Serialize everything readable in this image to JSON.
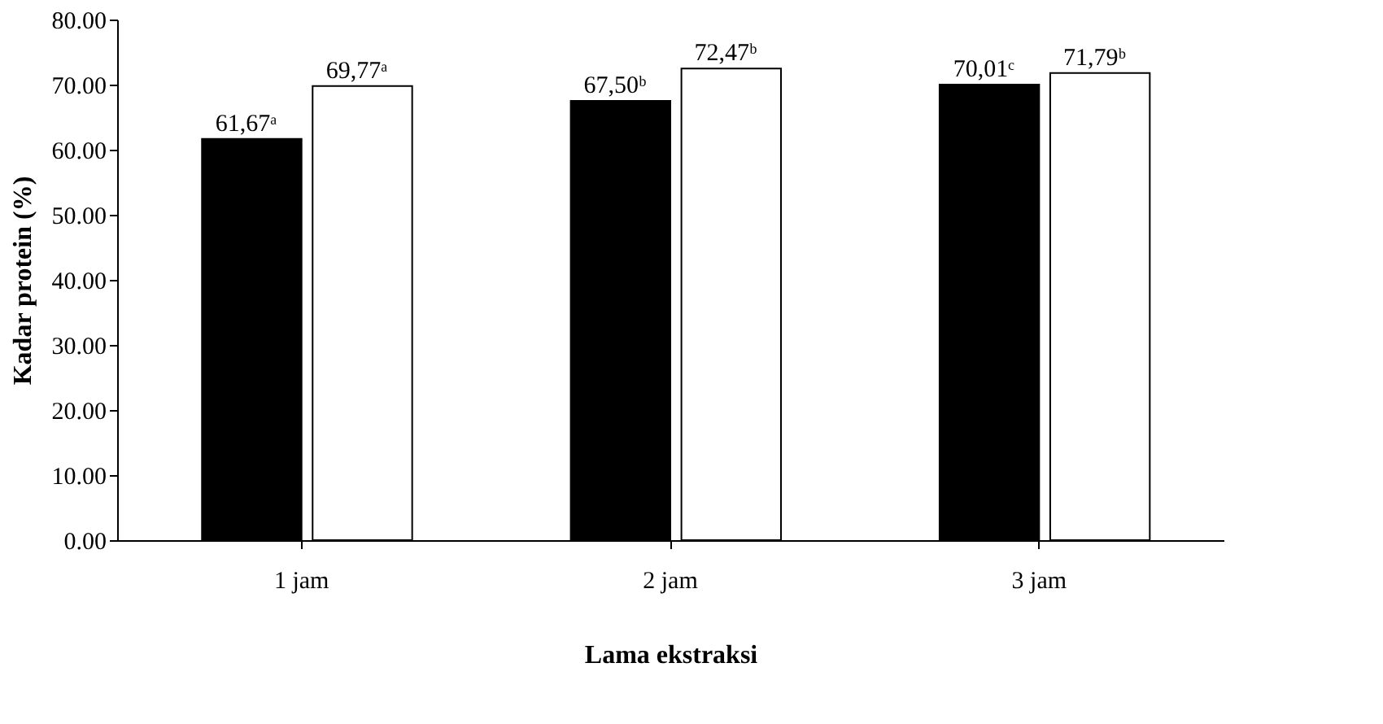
{
  "chart_data": {
    "type": "bar",
    "xlabel": "Lama ekstraksi",
    "ylabel": "Kadar protein (%)",
    "categories": [
      "1 jam",
      "2 jam",
      "3 jam"
    ],
    "series": [
      {
        "color": "#000000",
        "values": [
          61.67,
          67.5,
          70.01
        ],
        "value_labels": [
          "61,67ᵃ",
          "67,50ᵇ",
          "70,01ᶜ"
        ]
      },
      {
        "color": "#ffffff",
        "values": [
          69.77,
          72.47,
          71.79
        ],
        "value_labels": [
          "69,77ᵃ",
          "72,47ᵇ",
          "71,79ᵇ"
        ]
      }
    ],
    "ylim": [
      0,
      80
    ],
    "yticks": [
      {
        "value": 0,
        "label": "0.00"
      },
      {
        "value": 10,
        "label": "10.00"
      },
      {
        "value": 20,
        "label": "20.00"
      },
      {
        "value": 30,
        "label": "30.00"
      },
      {
        "value": 40,
        "label": "40.00"
      },
      {
        "value": 50,
        "label": "50.00"
      },
      {
        "value": 60,
        "label": "60.00"
      },
      {
        "value": 70,
        "label": "70.00"
      },
      {
        "value": 80,
        "label": "80.00"
      }
    ],
    "grid": false,
    "legend": false
  }
}
